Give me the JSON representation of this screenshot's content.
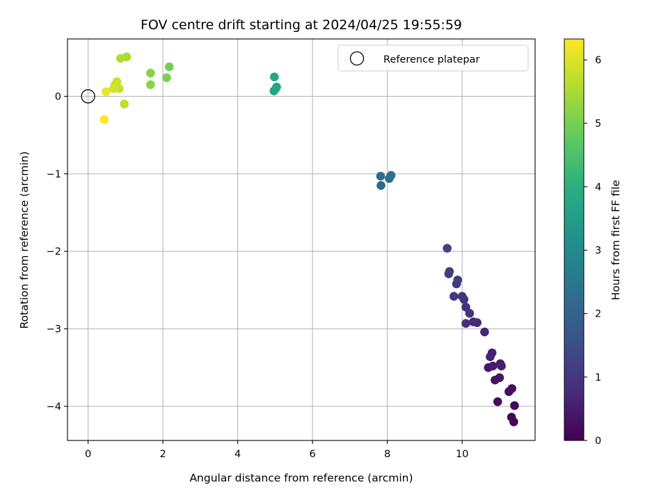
{
  "chart_data": {
    "type": "scatter",
    "title": "FOV centre drift starting at 2024/04/25 19:55:59",
    "xlabel": "Angular distance from reference (arcmin)",
    "ylabel": "Rotation from reference (arcmin)",
    "xlim": [
      -0.55,
      11.95
    ],
    "ylim": [
      -4.44,
      0.74
    ],
    "xticks": [
      0,
      2,
      4,
      6,
      8,
      10
    ],
    "yticks": [
      0,
      -1,
      -2,
      -3,
      -4
    ],
    "xtick_labels": [
      "0",
      "2",
      "4",
      "6",
      "8",
      "10"
    ],
    "ytick_labels": [
      "0",
      "−1",
      "−2",
      "−3",
      "−4"
    ],
    "grid": true,
    "legend": {
      "label": "Reference platepar",
      "position": "top-right",
      "marker": "open-circle"
    },
    "reference_point": {
      "x": 0,
      "y": 0
    },
    "colorbar": {
      "label": "Hours from first FF file",
      "colormap": "viridis",
      "range": [
        0,
        6.33
      ],
      "ticks": [
        0,
        1,
        2,
        3,
        4,
        5,
        6
      ],
      "tick_labels": [
        "0",
        "1",
        "2",
        "3",
        "4",
        "5",
        "6"
      ]
    },
    "points": [
      {
        "x": 11.38,
        "y": -4.2,
        "t": 0.05
      },
      {
        "x": 11.32,
        "y": -4.14,
        "t": 0.1
      },
      {
        "x": 11.4,
        "y": -3.99,
        "t": 0.15
      },
      {
        "x": 10.95,
        "y": -3.94,
        "t": 0.2
      },
      {
        "x": 11.25,
        "y": -3.81,
        "t": 0.25
      },
      {
        "x": 11.33,
        "y": -3.77,
        "t": 0.3
      },
      {
        "x": 10.88,
        "y": -3.66,
        "t": 0.35
      },
      {
        "x": 11.0,
        "y": -3.63,
        "t": 0.38
      },
      {
        "x": 10.7,
        "y": -3.5,
        "t": 0.42
      },
      {
        "x": 10.82,
        "y": -3.48,
        "t": 0.46
      },
      {
        "x": 11.02,
        "y": -3.45,
        "t": 0.5
      },
      {
        "x": 11.05,
        "y": -3.48,
        "t": 0.53
      },
      {
        "x": 10.75,
        "y": -3.36,
        "t": 0.57
      },
      {
        "x": 10.8,
        "y": -3.31,
        "t": 0.6
      },
      {
        "x": 10.6,
        "y": -3.04,
        "t": 0.66
      },
      {
        "x": 10.4,
        "y": -2.92,
        "t": 0.74
      },
      {
        "x": 10.3,
        "y": -2.91,
        "t": 0.78
      },
      {
        "x": 10.1,
        "y": -2.93,
        "t": 0.82
      },
      {
        "x": 10.2,
        "y": -2.8,
        "t": 0.86
      },
      {
        "x": 10.1,
        "y": -2.72,
        "t": 0.9
      },
      {
        "x": 10.05,
        "y": -2.62,
        "t": 0.94
      },
      {
        "x": 10.0,
        "y": -2.58,
        "t": 0.97
      },
      {
        "x": 9.78,
        "y": -2.58,
        "t": 1.02
      },
      {
        "x": 9.85,
        "y": -2.42,
        "t": 1.06
      },
      {
        "x": 9.88,
        "y": -2.37,
        "t": 1.1
      },
      {
        "x": 9.64,
        "y": -2.29,
        "t": 1.14
      },
      {
        "x": 9.66,
        "y": -2.26,
        "t": 1.18
      },
      {
        "x": 9.6,
        "y": -1.96,
        "t": 1.24
      },
      {
        "x": 7.83,
        "y": -1.15,
        "t": 2.2
      },
      {
        "x": 7.82,
        "y": -1.03,
        "t": 2.24
      },
      {
        "x": 8.05,
        "y": -1.06,
        "t": 2.28
      },
      {
        "x": 8.1,
        "y": -1.02,
        "t": 2.32
      },
      {
        "x": 4.97,
        "y": 0.07,
        "t": 3.65
      },
      {
        "x": 5.02,
        "y": 0.1,
        "t": 3.7
      },
      {
        "x": 5.04,
        "y": 0.12,
        "t": 3.72
      },
      {
        "x": 4.98,
        "y": 0.25,
        "t": 3.76
      },
      {
        "x": 2.17,
        "y": 0.38,
        "t": 5.0
      },
      {
        "x": 2.1,
        "y": 0.24,
        "t": 5.05
      },
      {
        "x": 1.67,
        "y": 0.3,
        "t": 5.15
      },
      {
        "x": 1.67,
        "y": 0.15,
        "t": 5.2
      },
      {
        "x": 1.03,
        "y": 0.51,
        "t": 5.5
      },
      {
        "x": 0.87,
        "y": 0.49,
        "t": 5.6
      },
      {
        "x": 0.97,
        "y": -0.1,
        "t": 5.7
      },
      {
        "x": 0.83,
        "y": 0.1,
        "t": 5.78
      },
      {
        "x": 0.77,
        "y": 0.19,
        "t": 5.82
      },
      {
        "x": 0.72,
        "y": 0.15,
        "t": 5.86
      },
      {
        "x": 0.68,
        "y": 0.1,
        "t": 5.9
      },
      {
        "x": 0.48,
        "y": 0.06,
        "t": 6.15
      },
      {
        "x": 0.43,
        "y": -0.3,
        "t": 6.3
      }
    ]
  }
}
